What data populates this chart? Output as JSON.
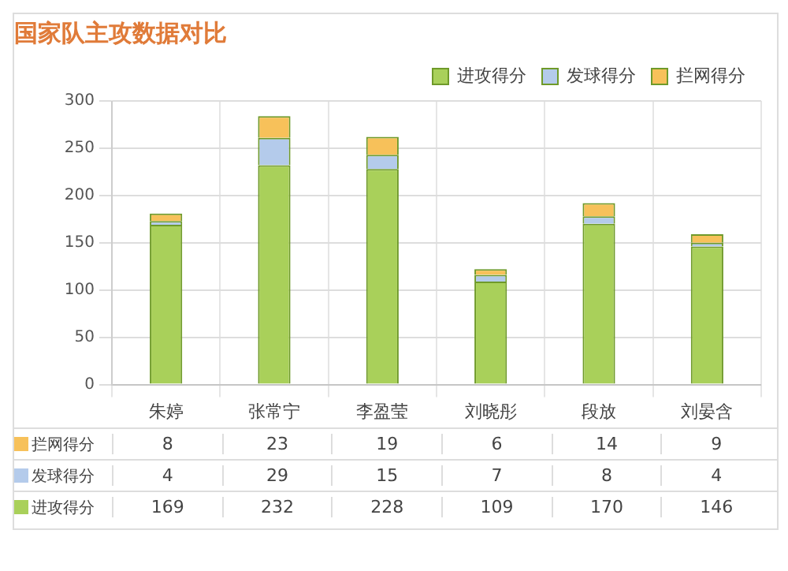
{
  "chart_data": {
    "type": "bar",
    "title": "国家队主攻数据对比",
    "categories": [
      "朱婷",
      "张常宁",
      "李盈莹",
      "刘晓彤",
      "段放",
      "刘晏含"
    ],
    "stacked": true,
    "series": [
      {
        "name": "进攻得分",
        "color": "#a9d05a",
        "values": [
          169,
          232,
          228,
          109,
          170,
          146
        ]
      },
      {
        "name": "发球得分",
        "color": "#b4cbeb",
        "values": [
          4,
          29,
          15,
          7,
          8,
          4
        ]
      },
      {
        "name": "拦网得分",
        "color": "#f7c15a",
        "values": [
          8,
          23,
          19,
          6,
          14,
          9
        ]
      }
    ],
    "ylim": [
      0,
      300
    ],
    "yticks": [
      0,
      50,
      100,
      150,
      200,
      250,
      300
    ],
    "grid": true,
    "legend": "top right",
    "data_labels": true
  }
}
